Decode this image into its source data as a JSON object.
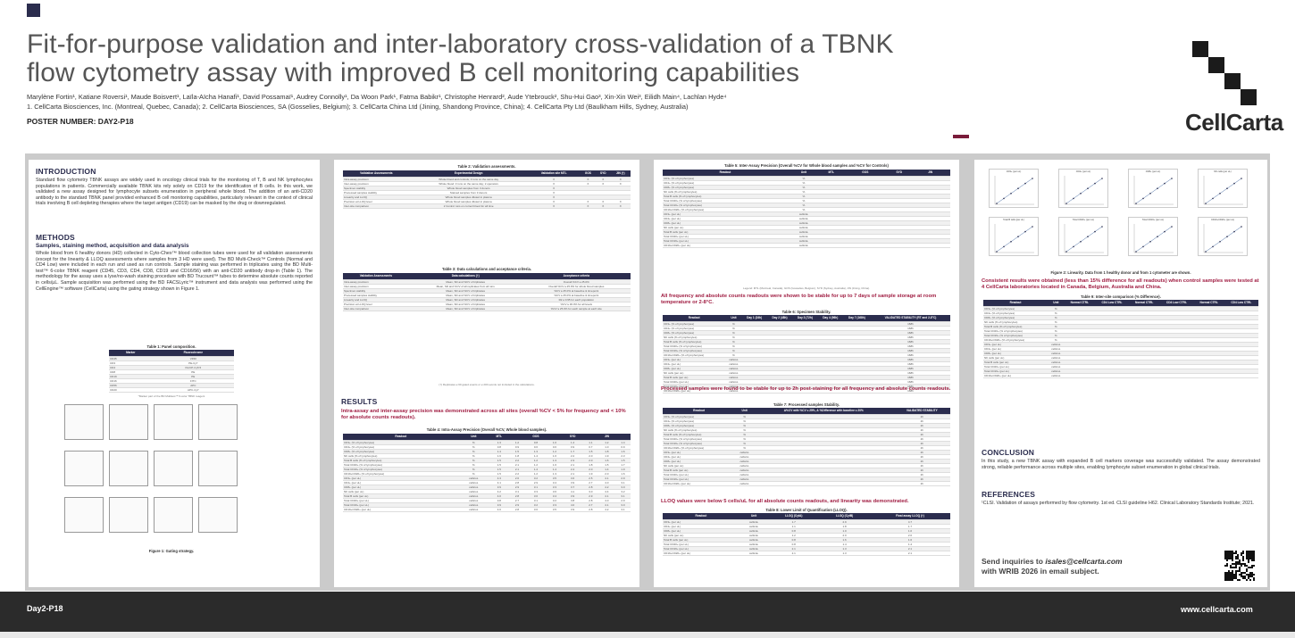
{
  "header": {
    "title_line1": "Fit-for-purpose validation and inter-laboratory cross-validation of a TBNK",
    "title_line2": "flow cytometry assay with improved B cell monitoring capabilities",
    "authors": "Marylène Fortin¹, Katiane Roversi¹, Maude Boisvert¹, Laïla-Aïcha Hanafi¹, David Possamaï¹, Audrey Connolly¹, Da Woon Park¹, Fatma Babikr¹, Christophe Henrard², Aude Ytebrouck², Shu-Hui Gao³, Xin-Xin Wei³, Eilidh Main⁴, Lachlan Hyde⁴",
    "affiliations": "1. CellCarta Biosciences, Inc. (Montreal, Quebec, Canada); 2. CellCarta Biosciences, SA (Gosselies, Belgium); 3. CellCarta China Ltd (Jining, Shandong Province, China); 4. CellCarta Pty Ltd (Baulkham Hills, Sydney, Australia)",
    "poster_number": "POSTER NUMBER: DAY2-P18",
    "logo": "CellCarta"
  },
  "colors": {
    "navy": "#2b2d4e",
    "accent": "#a01d42",
    "band": "#cbcbcb"
  },
  "intro": {
    "heading": "INTRODUCTION",
    "text": "Standard flow cytometry TBNK assays are widely used in oncology clinical trials for the monitoring of T, B and NK lymphocytes populations in patients. Commercially available TBNK kits rely solely on CD19 for the identification of B cells. In this work, we validated a new assay designed for lymphocyte subsets enumeration in peripheral whole blood. The addition of an anti-CD20 antibody to the standard TBNK panel provided enhanced B cell monitoring capabilities, particularly relevant in the context of clinical trials involving B cell depleting therapies where the target antigen (CD19) can be masked by the drug or downregulated."
  },
  "methods": {
    "heading": "METHODS",
    "subheading": "Samples, staining method, acquisition and data analysis",
    "text": "Whole blood from 6 healthy donors (HD) collected in Cyto-Chex™ blood collection tubes were used for all validation assessments (except for the linearity & LLOQ assessments where samples from 3 HD were used). The BD Multi-Check™ Controls (Normal and CD4 Low) were included in each run and used as run controls. Sample staining was performed in triplicates using the BD Multi-test™ 6-color TBNK reagent (CD45, CD3, CD4, CD8, CD19 and CD16/56) with an anti-CD20 antibody drop-in (Table 1). The methodology for the assay uses a lyse/no-wash staining procedure with BD Trucount™ tubes to determine absolute counts reported in cells/µL. Sample acquisition was performed using the BD FACSLyric™ instrument and data analysis was performed using the CellEngine™ software (CellCarta) using the gating strategy shown in Figure 1.",
    "table1_caption": "Table 1: Panel composition.",
    "table1_headers": [
      "Marker",
      "Fluorochrome"
    ],
    "table1_rows": [
      [
        "CD45",
        "V450"
      ],
      [
        "CD3",
        "PE-Cy7"
      ],
      [
        "CD4",
        "PerCP-Cy5.5"
      ],
      [
        "CD8",
        "PE"
      ],
      [
        "CD19",
        "PE"
      ],
      [
        "CD16",
        "FITC"
      ],
      [
        "CD56",
        "APC"
      ],
      [
        "CD20",
        "APC-Cy7"
      ]
    ],
    "table1_note": "*Marker part of the BD Multitest™ 6-color TBNK reagent",
    "figure1_caption": "Figure 1: Gating strategy."
  },
  "table2": {
    "caption": "Table 2: Validation assessments.",
    "headers": [
      "Validation Assessments",
      "Experimental Design",
      "Validation site MTL",
      "GOS",
      "SYD",
      "JIN (†)"
    ],
    "rows": [
      [
        "Intra-assay precision",
        "Whole blood and controls; 3 runs on the same day",
        "X",
        "X",
        "X",
        "X"
      ],
      [
        "Inter-assay precision",
        "Whole blood: 3 runs on the same day; 2 operators",
        "X",
        "X",
        "X",
        "X"
      ],
      [
        "Specimen stability",
        "Whole blood samples from 3 donors",
        "X",
        "",
        "",
        ""
      ],
      [
        "Processed samples stability",
        "Stained samples from 3 donors",
        "X",
        "",
        "",
        ""
      ],
      [
        "Linearity and LLOQ",
        "Whole blood samples diluted in plasma",
        "X",
        "",
        "",
        ""
      ],
      [
        "Precision at LLOQ level",
        "Whole blood samples diluted in plasma",
        "X",
        "X",
        "X",
        "X"
      ],
      [
        "Inter-site comparison",
        "2 Control runs on correct blood for all time",
        "X",
        "X",
        "X",
        "X"
      ]
    ]
  },
  "table3": {
    "caption": "Table 3: Data calculations and acceptance criteria.",
    "headers": [
      "Validation Assessments",
      "Data calculations (†)",
      "Acceptance criteria"
    ],
    "rows": [
      [
        "Intra-assay precision",
        "Mean, SD and %CV of triplicates",
        "Overall %CV ≤ 25.0%"
      ],
      [
        "Inter-assay precision",
        "Mean, SD and %CV of all replicates from all runs",
        "Overall %CV ≤ 25.0% for whole blood samples"
      ],
      [
        "Specimen stability",
        "Mean, SD and %CV of triplicates",
        "%CV ≤ 25.0% at baseline & timepoint"
      ],
      [
        "Processed samples stability",
        "Mean, SD and %CV of triplicates",
        "%CV ≤ 25.0% at baseline & timepoint"
      ],
      [
        "Linearity and LLOQ",
        "Mean, SD and %CV of triplicates",
        "R2 ≥ 0.95 for each population"
      ],
      [
        "Precision at LLOQ level",
        "Mean, SD and %CV of triplicates",
        "%CV ≤ 30.0% for all levels"
      ],
      [
        "Inter-site comparison",
        "Mean, SD and %CV of triplicates",
        "%CV ≤ 25.0% for each sample at each site"
      ]
    ],
    "note": "(†) Replicates ≥ 60 gated events or ≥ 200 events not included in the calculations."
  },
  "results": {
    "heading": "RESULTS",
    "statement": "Intra-assay and inter-assay precision was demonstrated across all sites (overall %CV < 5% for frequency and < 10% for absolute counts readouts).",
    "table4_caption": "Table 4: Intra-Assay Precision (Overall %CV, Whole blood samples).",
    "table4_groups": [
      "Readout",
      "Unit",
      "MTL",
      "GOS",
      "SYD",
      "JIN"
    ],
    "table4_rows": [
      [
        "CD3+ (% of lymphocytes)",
        "%",
        "1.3",
        "1.2",
        "0.8",
        "1.0",
        "1.4",
        "1.1",
        "1.2",
        "1.4"
      ],
      [
        "CD4+ (% of lymphocytes)",
        "%",
        "0.8",
        "0.9",
        "0.6",
        "0.6",
        "0.9",
        "0.7",
        "1.0",
        "0.9"
      ],
      [
        "CD8+ (% of lymphocytes)",
        "%",
        "1.4",
        "1.5",
        "1.3",
        "1.2",
        "1.7",
        "1.5",
        "1.8",
        "1.6"
      ],
      [
        "NK cells (% of lymphocytes)",
        "%",
        "1.6",
        "1.8",
        "1.4",
        "1.6",
        "2.2",
        "2.0",
        "1.9",
        "2.3"
      ],
      [
        "Total B cells (% of lymphocytes)",
        "%",
        "1.5",
        "2.2",
        "1.2",
        "1.3",
        "2.3",
        "2.0",
        "1.6",
        "1.5"
      ],
      [
        "Total CD20+ (% of lymphocytes)",
        "%",
        "1.5",
        "2.1",
        "1.2",
        "1.6",
        "2.1",
        "1.8",
        "1.5",
        "1.7"
      ],
      [
        "Total CD19+ (% of lymphocytes)",
        "%",
        "1.5",
        "2.1",
        "1.4",
        "1.4",
        "2.4",
        "2.0",
        "1.4",
        "1.9"
      ],
      [
        "CD19+CD20+ (% of lymphocytes)",
        "%",
        "1.5",
        "2.2",
        "1.2",
        "1.3",
        "2.1",
        "1.9",
        "2.0",
        "1.6"
      ],
      [
        "CD3+ (per uL)",
        "cells/uL",
        "4.3",
        "2.6",
        "3.2",
        "3.5",
        "3.6",
        "2.5",
        "4.1",
        "2.9"
      ],
      [
        "CD4+ (per uL)",
        "cells/uL",
        "4.1",
        "2.8",
        "2.9",
        "3.4",
        "3.9",
        "2.7",
        "4.0",
        "3.1"
      ],
      [
        "CD8+ (per uL)",
        "cells/uL",
        "3.9",
        "2.9",
        "3.1",
        "3.3",
        "3.7",
        "2.8",
        "4.2",
        "3.0"
      ],
      [
        "NK cells (per uL)",
        "cells/uL",
        "4.2",
        "3.1",
        "3.3",
        "3.6",
        "4.1",
        "3.0",
        "4.4",
        "3.2"
      ],
      [
        "Total B cells (per uL)",
        "cells/uL",
        "4.0",
        "2.8",
        "3.0",
        "3.4",
        "3.9",
        "2.9",
        "4.1",
        "3.1"
      ],
      [
        "Total CD20+ (per uL)",
        "cells/uL",
        "3.8",
        "2.7",
        "3.1",
        "3.2",
        "3.8",
        "2.8",
        "4.0",
        "2.9"
      ],
      [
        "Total CD19+ (per uL)",
        "cells/uL",
        "3.9",
        "2.9",
        "3.2",
        "3.3",
        "4.0",
        "2.7",
        "4.1",
        "3.0"
      ],
      [
        "CD19+CD20+ (per uL)",
        "cells/uL",
        "4.0",
        "2.8",
        "3.0",
        "3.5",
        "3.9",
        "2.8",
        "4.2",
        "3.1"
      ]
    ]
  },
  "table5": {
    "caption": "Table 5: Inter-Assay Precision (Overall %CV for Whole blood samples and %CV for Controls)",
    "sites": [
      "MTL",
      "GOS",
      "SYD",
      "JIN"
    ],
    "rows": [
      "CD3+ (% of lymphocytes)",
      "CD4+ (% of lymphocytes)",
      "CD8+ (% of lymphocytes)",
      "NK cells (% of lymphocytes)",
      "Total B cells (% of lymphocytes)",
      "Total CD20+ (% of lymphocytes)",
      "Total CD19+ (% of lymphocytes)",
      "CD19+CD20+ (% of lymphocytes)",
      "CD3+ (per uL)",
      "CD4+ (per uL)",
      "CD8+ (per uL)",
      "NK cells (per uL)",
      "Total B cells (per uL)",
      "Total CD20+ (per uL)",
      "Total CD19+ (per uL)",
      "CD19+CD20+ (per uL)"
    ],
    "note": "Legend: MTL (Montreal, Canada), GOS (Gosselies, Belgium), SYD (Sydney, Australia), JIN (Jining, China)."
  },
  "stability": {
    "statement1": "All frequency and absolute counts readouts were shown to be stable for up to 7 days of sample storage at room temperature or 2-8°C.",
    "table6_caption": "Table 6: Specimen Stability.",
    "table6_cols": [
      "Readout",
      "Unit",
      "Day 1 (24h)",
      "Day 2 (48h)",
      "Day 3 (72h)",
      "Day 4 (96h)",
      "Day 7 (168h)",
      "VALIDATED STABILITY (RT and 2-8°C)"
    ],
    "statement2": "Processed samples were found to be stable for up to 2h post-staining for all frequency and absolute counts readouts.",
    "table7_caption": "Table 7: Processed samples Stability.",
    "table7_cols": [
      "Readout",
      "Unit",
      "Δ%CV with %CV ≤ 25%, & %Difference with baseline ≤ 20%",
      "VALIDATED STABILITY"
    ],
    "validated": "168h",
    "validated2": "2h"
  },
  "lloq": {
    "statement": "LLOQ values were below 5 cells/uL for all absolute counts readouts, and linearity was demonstrated.",
    "table8_caption": "Table 8: Lower Limit of Quantification (LLOQ).",
    "table8_cols": [
      "Readout",
      "Unit",
      "LLOQ (CytA)",
      "LLOQ (CytB)",
      "Final assay LLOQ (†)"
    ],
    "table8_rows": [
      [
        "CD3+ (per uL)",
        "cells/uL",
        "1.7",
        "2.9",
        "4.7"
      ],
      [
        "CD4+ (per uL)",
        "cells/uL",
        "1.1",
        "1.8",
        "1.7"
      ],
      [
        "CD8+ (per uL)",
        "cells/uL",
        "0.8",
        "1.0",
        "1.0"
      ],
      [
        "NK cells (per uL)",
        "cells/uL",
        "1.2",
        "2.0",
        "2.0"
      ],
      [
        "Total B cells (per uL)",
        "cells/uL",
        "0.8",
        "1.6",
        "1.6"
      ],
      [
        "Total CD20+ (per uL)",
        "cells/uL",
        "0.8",
        "1.4",
        "1.4"
      ],
      [
        "Total CD19+ (per uL)",
        "cells/uL",
        "2.1",
        "1.3",
        "2.1"
      ],
      [
        "CD19+CD20+ (per uL)",
        "cells/uL",
        "2.1",
        "1.3",
        "2.1"
      ]
    ]
  },
  "linearity": {
    "plots": [
      "CD3+ (per uL)",
      "CD4+ (per uL)",
      "CD8+ (per uL)",
      "NK cells (per uL)",
      "Total B cells (per uL)",
      "Total CD20+ (per uL)",
      "Total CD19+ (per uL)",
      "CD19+CD20+ (per uL)"
    ],
    "figure2_caption": "Figure 2: Linearity. Data from 1 healthy donor and from 1 cytometer are shown.",
    "statement": "Consistent results were obtained (less than 15% difference for all readouts) when control samples were tested at 4 CellCarta laboratories located in Canada, Belgium, Australia and China.",
    "table9_caption": "Table 9: Inter-site comparison (% Difference).",
    "table9_groups": [
      "Readout",
      "Unit",
      "GOS vs MTL",
      "SYD vs MTL",
      "JIN vs MTL"
    ],
    "table9_sub": [
      "Normal CTRL",
      "CD4 Low CTRL",
      "Normal CTRL",
      "CD4 Low CTRL",
      "Normal CTRL",
      "CD4 Low CTRL"
    ]
  },
  "conclusion": {
    "heading": "CONCLUSION",
    "text": "In this study, a new TBNK assay with expanded B cell markers coverage was successfully validated. The assay demonstrated strong, reliable performance across multiple sites, enabling lymphocyte subset enumeration in global clinical trials."
  },
  "references": {
    "heading": "REFERENCES",
    "text": "¹CLSI. Validation of assays performed by flow cytometry. 1st ed. CLSI guideline H62. Clinical Laboratory Standards Institute; 2021."
  },
  "contact": {
    "line1_prefix": "Send inquiries to ",
    "email": "isales@cellcarta.com",
    "line2": "with WRIB 2026 in email subject."
  },
  "footer": {
    "left": "Day2-P18",
    "right": "www.cellcarta.com"
  }
}
